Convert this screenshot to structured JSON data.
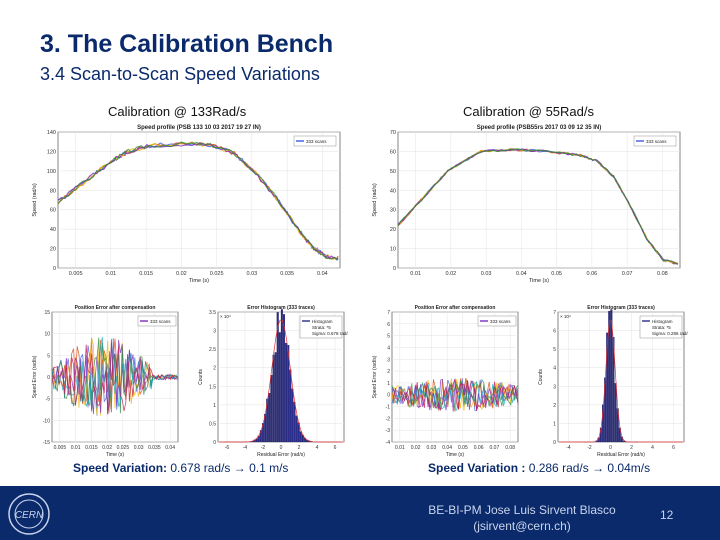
{
  "slide": {
    "title": "3. The Calibration Bench",
    "subtitle": "3.4 Scan-to-Scan Speed Variations"
  },
  "columns": [
    {
      "heading": "Calibration @ 133Rad/s",
      "result_label": "Speed Variation: ",
      "result_value": "0.678 rad/s ",
      "result_tail": " 0.1 m/s"
    },
    {
      "heading": "Calibration @ 55Rad/s",
      "result_label": "Speed Variation : ",
      "result_value": "0.286 rad/s ",
      "result_tail": " 0.04m/s"
    }
  ],
  "arrow_glyph": "→",
  "chart_data": [
    {
      "type": "line",
      "title": "Speed profile (PSB 133 10 03 2017 19 27 IN)",
      "xlabel": "Time (s)",
      "ylabel": "Speed (rad/s)",
      "legend": [
        "333 scans"
      ],
      "xticks": [
        "0.005",
        "0.01",
        "0.015",
        "0.02",
        "0.025",
        "0.03",
        "0.035",
        "0.04"
      ],
      "yticks": [
        "0",
        "20",
        "40",
        "60",
        "80",
        "100",
        "120",
        "140"
      ],
      "xlim": [
        0.005,
        0.045
      ],
      "ylim": [
        0,
        140
      ],
      "x": [
        0.005,
        0.009,
        0.013,
        0.015,
        0.018,
        0.024,
        0.027,
        0.03,
        0.033,
        0.036,
        0.039,
        0.041,
        0.043,
        0.045
      ],
      "values": [
        68,
        90,
        112,
        120,
        126,
        128,
        126,
        118,
        98,
        72,
        40,
        22,
        12,
        10
      ]
    },
    {
      "type": "line",
      "title": "Speed profile (PSB55rs 2017 03 09 12 35 IN)",
      "xlabel": "Time (s)",
      "ylabel": "Speed (rad/s)",
      "legend": [
        "333 scans"
      ],
      "xticks": [
        "0.01",
        "0.02",
        "0.03",
        "0.04",
        "0.05",
        "0.06",
        "0.07",
        "0.08"
      ],
      "yticks": [
        "0",
        "10",
        "20",
        "30",
        "40",
        "50",
        "60",
        "70"
      ],
      "xlim": [
        0.005,
        0.09
      ],
      "ylim": [
        0,
        70
      ],
      "x": [
        0.005,
        0.012,
        0.02,
        0.03,
        0.04,
        0.05,
        0.06,
        0.065,
        0.07,
        0.075,
        0.08,
        0.085,
        0.09
      ],
      "values": [
        22,
        35,
        50,
        60,
        61,
        60,
        58,
        55,
        47,
        32,
        15,
        4,
        2
      ]
    },
    {
      "type": "line",
      "title": "Position Error after compensation",
      "xlabel": "Time (s)",
      "ylabel": "Speed Error (rad/s)",
      "legend": [
        "333 scans"
      ],
      "xticks": [
        "0.005",
        "0.01",
        "0.015",
        "0.02",
        "0.025",
        "0.03",
        "0.035",
        "0.04"
      ],
      "yticks": [
        "-15",
        "-10",
        "-5",
        "0",
        "5",
        "10",
        "15"
      ],
      "ylim": [
        -15,
        15
      ]
    },
    {
      "type": "bar",
      "title": "Error Histogram (333 traces)",
      "xlabel": "Residual Error (rad/s)",
      "ylabel": "Counts",
      "legend": [
        "Histogram",
        "Strata: *5",
        "Sigma: 0.678 rad/s"
      ],
      "xticks": [
        "-6",
        "-4",
        "-2",
        "0",
        "2",
        "4",
        "6"
      ],
      "yticks": [
        "0",
        "0.5",
        "1",
        "1.5",
        "2",
        "2.5",
        "3",
        "3.5"
      ],
      "multiplier": "× 10⁴",
      "sigma": 0.678,
      "peak": 3.3,
      "ylim": [
        0,
        3.5
      ]
    },
    {
      "type": "line",
      "title": "Position Error after compensation",
      "xlabel": "Time (s)",
      "ylabel": "Speed Error (rad/s)",
      "legend": [
        "333 scans"
      ],
      "xticks": [
        "0.01",
        "0.02",
        "0.03",
        "0.04",
        "0.05",
        "0.06",
        "0.07",
        "0.08"
      ],
      "yticks": [
        "-4",
        "-3",
        "-2",
        "-1",
        "0",
        "1",
        "2",
        "3",
        "4",
        "5",
        "6",
        "7"
      ],
      "ylim": [
        -4,
        7
      ]
    },
    {
      "type": "bar",
      "title": "Error Histogram (333 traces)",
      "xlabel": "Residual Error (rad/s)",
      "ylabel": "Counts",
      "legend": [
        "Histogram",
        "Strata: *5",
        "Sigma: 0.286 rad/s"
      ],
      "xticks": [
        "-4",
        "-2",
        "0",
        "2",
        "4",
        "6"
      ],
      "yticks": [
        "0",
        "1",
        "2",
        "3",
        "4",
        "5",
        "6",
        "7"
      ],
      "multiplier": "× 10⁴",
      "sigma": 0.286,
      "peak": 6.7,
      "ylim": [
        0,
        7
      ]
    }
  ],
  "footer": {
    "author_line1": "BE-BI-PM Jose Luis Sirvent Blasco",
    "author_line2": "(jsirvent@cern.ch)",
    "page_number": "12"
  }
}
